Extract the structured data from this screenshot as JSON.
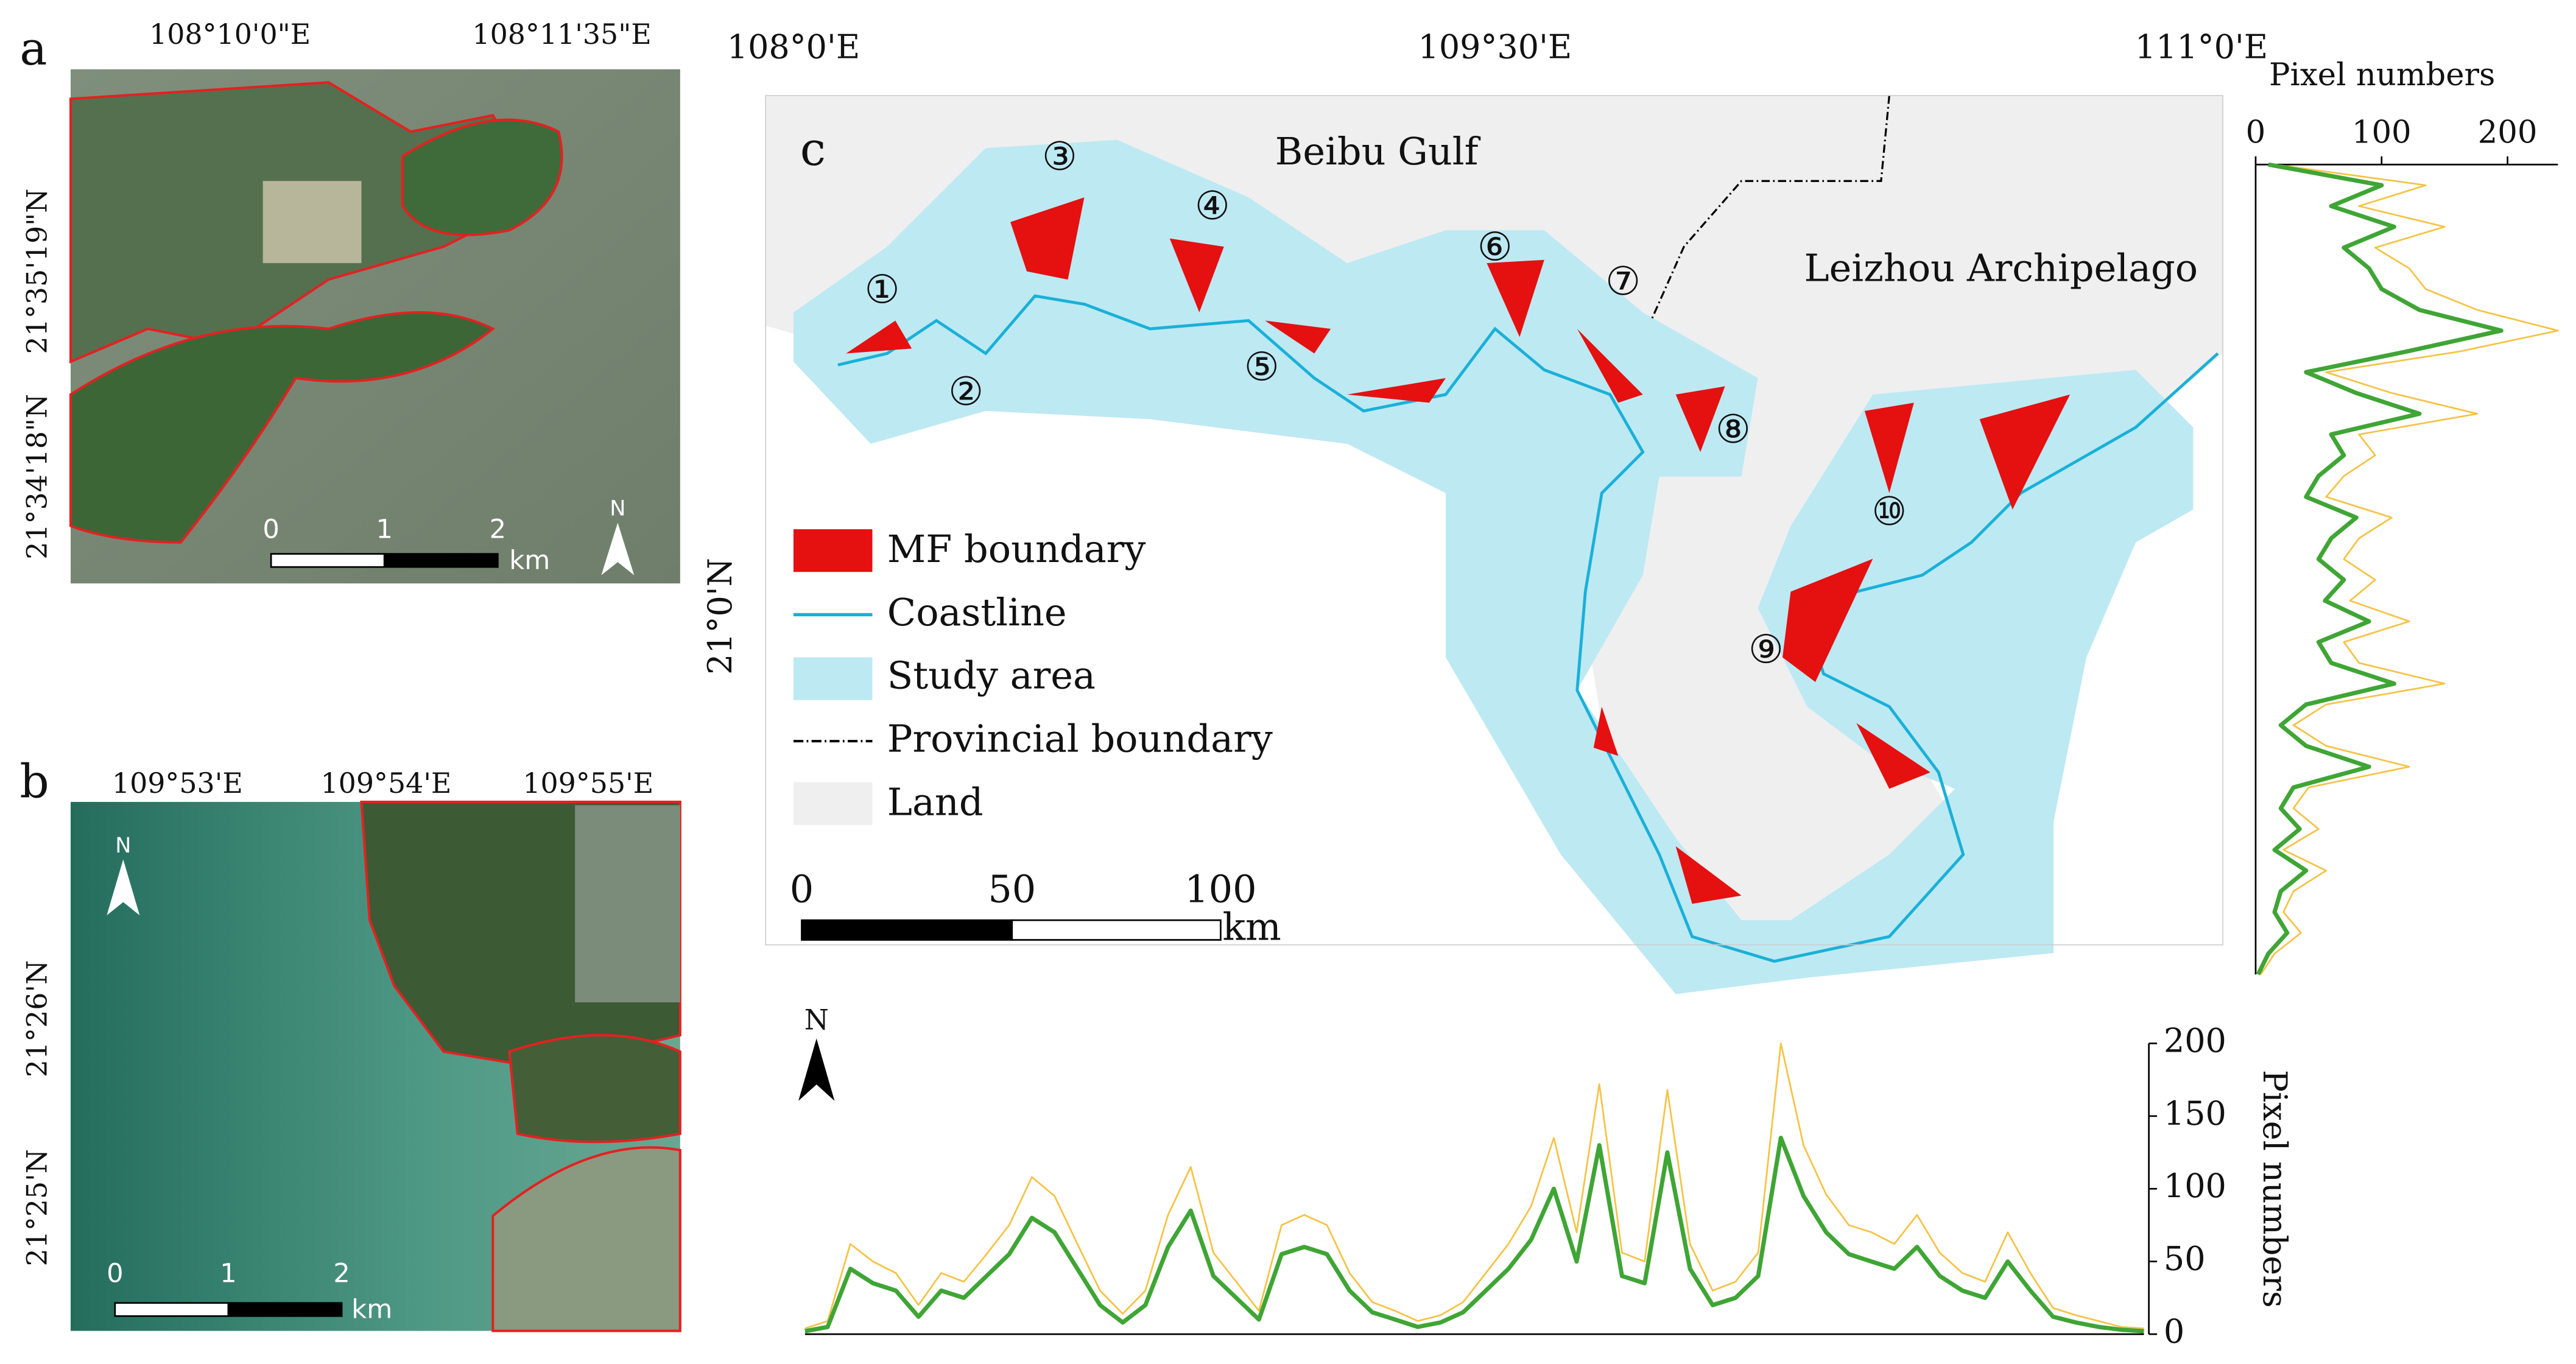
{
  "panel_a": {
    "label": "a",
    "x_ticks": [
      "108°10'0\"E",
      "108°11'35\"E"
    ],
    "y_ticks": [
      "21°35'19\"N",
      "21°34'18\"N"
    ],
    "scale": [
      "0",
      "1",
      "2",
      "km"
    ],
    "north": "N"
  },
  "panel_b": {
    "label": "b",
    "x_ticks": [
      "109°53'E",
      "109°54'E",
      "109°55'E"
    ],
    "y_ticks": [
      "21°26'N",
      "21°25'N"
    ],
    "scale": [
      "0",
      "1",
      "2",
      "km"
    ],
    "north": "N"
  },
  "panel_c": {
    "label": "c",
    "x_ticks": [
      "108°0'E",
      "109°30'E",
      "111°0'E"
    ],
    "y_ticks": [
      "21°0'N"
    ],
    "places": [
      "Beibu Gulf",
      "Leizhou Archipelago"
    ],
    "sites": [
      "①",
      "②",
      "③",
      "④",
      "⑤",
      "⑥",
      "⑦",
      "⑧",
      "⑨",
      "⑩"
    ],
    "legend": [
      "MF boundary",
      "Coastline",
      "Study area",
      "Provincial boundary",
      "Land"
    ],
    "scale": [
      "0",
      "50",
      "100",
      "km"
    ],
    "north": "N"
  },
  "chart_data": [
    {
      "type": "line",
      "ylabel": "Pixel numbers",
      "ylim": [
        0,
        200
      ],
      "yticks": [
        0,
        50,
        100,
        150,
        200
      ],
      "series": [
        {
          "color": "#f5c242",
          "values": [
            4,
            9,
            62,
            50,
            42,
            20,
            42,
            36,
            55,
            75,
            108,
            95,
            62,
            30,
            14,
            30,
            82,
            115,
            56,
            36,
            16,
            75,
            82,
            75,
            42,
            22,
            16,
            9,
            13,
            22,
            42,
            62,
            88,
            135,
            70,
            172,
            56,
            50,
            168,
            62,
            30,
            36,
            56,
            200,
            130,
            96,
            75,
            70,
            62,
            82,
            56,
            42,
            36,
            70,
            42,
            18,
            13,
            9,
            5,
            4
          ]
        },
        {
          "color": "#3fa535",
          "values": [
            2,
            5,
            45,
            35,
            30,
            12,
            30,
            25,
            40,
            55,
            80,
            70,
            45,
            20,
            8,
            20,
            60,
            85,
            40,
            25,
            10,
            55,
            60,
            55,
            30,
            15,
            10,
            5,
            8,
            15,
            30,
            45,
            65,
            100,
            50,
            130,
            40,
            35,
            125,
            45,
            20,
            25,
            40,
            135,
            95,
            70,
            55,
            50,
            45,
            60,
            40,
            30,
            25,
            50,
            30,
            12,
            8,
            5,
            3,
            2
          ]
        }
      ]
    },
    {
      "type": "line",
      "xlabel": "Pixel numbers",
      "xlim": [
        0,
        240
      ],
      "xticks": [
        0,
        100,
        200
      ],
      "series": [
        {
          "color": "#f5c242",
          "values": [
            15,
            135,
            82,
            150,
            95,
            122,
            135,
            176,
            240,
            162,
            56,
            108,
            176,
            82,
            95,
            70,
            56,
            108,
            82,
            70,
            95,
            75,
            122,
            70,
            82,
            150,
            56,
            30,
            56,
            122,
            42,
            30,
            50,
            22,
            56,
            30,
            22,
            36,
            15,
            4
          ]
        },
        {
          "color": "#3fa535",
          "values": [
            10,
            100,
            60,
            110,
            70,
            90,
            100,
            130,
            195,
            120,
            40,
            80,
            130,
            60,
            70,
            50,
            40,
            80,
            60,
            50,
            70,
            55,
            90,
            50,
            60,
            110,
            40,
            20,
            40,
            90,
            30,
            20,
            35,
            15,
            40,
            20,
            15,
            25,
            10,
            2
          ]
        }
      ]
    }
  ]
}
